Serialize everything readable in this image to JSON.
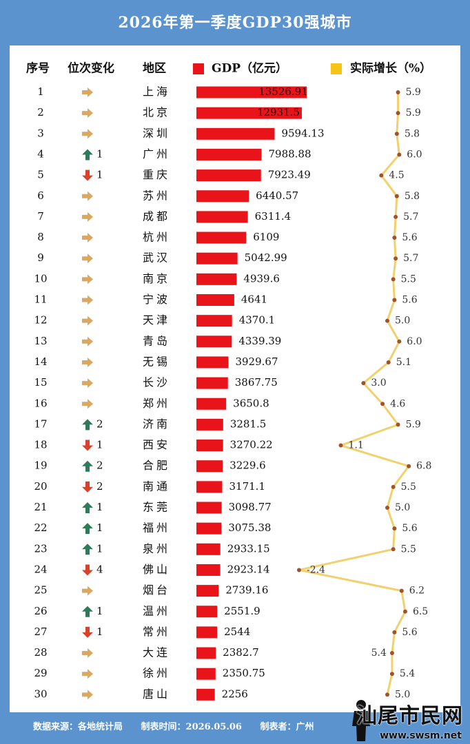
{
  "header": {
    "title": "2026年第一季度GDP30强城市"
  },
  "columns": {
    "rank": "序号",
    "change": "位次变化",
    "region": "地区",
    "gdp": "GDP（亿元）",
    "growth": "实际增长（%）"
  },
  "colors": {
    "background": "#5b93cf",
    "bar": "#e8141a",
    "line": "#f2d06b",
    "dot": "#a0522d",
    "up": "#2f7a5a",
    "down": "#d9412a",
    "flat": "#dba862",
    "legend_gdp": "#e8141a",
    "legend_growth": "#f6c417"
  },
  "chart_data": {
    "type": "table",
    "rows": [
      {
        "rank": "1",
        "dir": "flat",
        "delta": "",
        "city": "上海",
        "gdp": 13526.91,
        "gdp_label": "13526.91",
        "growth": 5.9,
        "growth_label": "5.9"
      },
      {
        "rank": "2",
        "dir": "flat",
        "delta": "",
        "city": "北京",
        "gdp": 12931.5,
        "gdp_label": "12931.5",
        "growth": 5.9,
        "growth_label": "5.9"
      },
      {
        "rank": "3",
        "dir": "flat",
        "delta": "",
        "city": "深圳",
        "gdp": 9594.13,
        "gdp_label": "9594.13",
        "growth": 5.8,
        "growth_label": "5.8"
      },
      {
        "rank": "4",
        "dir": "up",
        "delta": "1",
        "city": "广州",
        "gdp": 7988.88,
        "gdp_label": "7988.88",
        "growth": 6.0,
        "growth_label": "6.0"
      },
      {
        "rank": "5",
        "dir": "down",
        "delta": "1",
        "city": "重庆",
        "gdp": 7923.49,
        "gdp_label": "7923.49",
        "growth": 4.5,
        "growth_label": "4.5"
      },
      {
        "rank": "6",
        "dir": "flat",
        "delta": "",
        "city": "苏州",
        "gdp": 6440.57,
        "gdp_label": "6440.57",
        "growth": 5.8,
        "growth_label": "5.8"
      },
      {
        "rank": "7",
        "dir": "flat",
        "delta": "",
        "city": "成都",
        "gdp": 6311.4,
        "gdp_label": "6311.4",
        "growth": 5.7,
        "growth_label": "5.7"
      },
      {
        "rank": "8",
        "dir": "flat",
        "delta": "",
        "city": "杭州",
        "gdp": 6109,
        "gdp_label": "6109",
        "growth": 5.6,
        "growth_label": "5.6"
      },
      {
        "rank": "9",
        "dir": "flat",
        "delta": "",
        "city": "武汉",
        "gdp": 5042.99,
        "gdp_label": "5042.99",
        "growth": 5.7,
        "growth_label": "5.7"
      },
      {
        "rank": "10",
        "dir": "flat",
        "delta": "",
        "city": "南京",
        "gdp": 4939.6,
        "gdp_label": "4939.6",
        "growth": 5.5,
        "growth_label": "5.5"
      },
      {
        "rank": "11",
        "dir": "flat",
        "delta": "",
        "city": "宁波",
        "gdp": 4641,
        "gdp_label": "4641",
        "growth": 5.6,
        "growth_label": "5.6"
      },
      {
        "rank": "12",
        "dir": "flat",
        "delta": "",
        "city": "天津",
        "gdp": 4370.1,
        "gdp_label": "4370.1",
        "growth": 5.0,
        "growth_label": "5.0"
      },
      {
        "rank": "13",
        "dir": "flat",
        "delta": "",
        "city": "青岛",
        "gdp": 4339.39,
        "gdp_label": "4339.39",
        "growth": 6.0,
        "growth_label": "6.0"
      },
      {
        "rank": "14",
        "dir": "flat",
        "delta": "",
        "city": "无锡",
        "gdp": 3929.67,
        "gdp_label": "3929.67",
        "growth": 5.1,
        "growth_label": "5.1"
      },
      {
        "rank": "15",
        "dir": "flat",
        "delta": "",
        "city": "长沙",
        "gdp": 3867.75,
        "gdp_label": "3867.75",
        "growth": 3.0,
        "growth_label": "3.0"
      },
      {
        "rank": "16",
        "dir": "flat",
        "delta": "",
        "city": "郑州",
        "gdp": 3650.8,
        "gdp_label": "3650.8",
        "growth": 4.6,
        "growth_label": "4.6"
      },
      {
        "rank": "17",
        "dir": "up",
        "delta": "2",
        "city": "济南",
        "gdp": 3281.5,
        "gdp_label": "3281.5",
        "growth": 5.9,
        "growth_label": "5.9"
      },
      {
        "rank": "18",
        "dir": "down",
        "delta": "1",
        "city": "西安",
        "gdp": 3270.22,
        "gdp_label": "3270.22",
        "growth": 1.1,
        "growth_label": "1.1"
      },
      {
        "rank": "19",
        "dir": "up",
        "delta": "2",
        "city": "合肥",
        "gdp": 3229.6,
        "gdp_label": "3229.6",
        "growth": 6.8,
        "growth_label": "6.8"
      },
      {
        "rank": "20",
        "dir": "down",
        "delta": "2",
        "city": "南通",
        "gdp": 3171.1,
        "gdp_label": "3171.1",
        "growth": 5.5,
        "growth_label": "5.5"
      },
      {
        "rank": "21",
        "dir": "up",
        "delta": "1",
        "city": "东莞",
        "gdp": 3098.77,
        "gdp_label": "3098.77",
        "growth": 5.0,
        "growth_label": "5.0"
      },
      {
        "rank": "22",
        "dir": "up",
        "delta": "1",
        "city": "福州",
        "gdp": 3075.38,
        "gdp_label": "3075.38",
        "growth": 5.6,
        "growth_label": "5.6"
      },
      {
        "rank": "23",
        "dir": "up",
        "delta": "1",
        "city": "泉州",
        "gdp": 2933.15,
        "gdp_label": "2933.15",
        "growth": 5.5,
        "growth_label": "5.5"
      },
      {
        "rank": "24",
        "dir": "down",
        "delta": "4",
        "city": "佛山",
        "gdp": 2923.14,
        "gdp_label": "2923.14",
        "growth": -2.4,
        "growth_label": "-2.4"
      },
      {
        "rank": "25",
        "dir": "flat",
        "delta": "",
        "city": "烟台",
        "gdp": 2739.16,
        "gdp_label": "2739.16",
        "growth": 6.2,
        "growth_label": "6.2"
      },
      {
        "rank": "26",
        "dir": "up",
        "delta": "1",
        "city": "温州",
        "gdp": 2551.9,
        "gdp_label": "2551.9",
        "growth": 6.5,
        "growth_label": "6.5"
      },
      {
        "rank": "27",
        "dir": "down",
        "delta": "1",
        "city": "常州",
        "gdp": 2544,
        "gdp_label": "2544",
        "growth": 5.6,
        "growth_label": "5.6"
      },
      {
        "rank": "28",
        "dir": "flat",
        "delta": "",
        "city": "大连",
        "gdp": 2382.7,
        "gdp_label": "2382.7",
        "growth": 5.4,
        "growth_label": "5.4"
      },
      {
        "rank": "29",
        "dir": "flat",
        "delta": "",
        "city": "徐州",
        "gdp": 2350.75,
        "gdp_label": "2350.75",
        "growth": 5.4,
        "growth_label": "5.4"
      },
      {
        "rank": "30",
        "dir": "flat",
        "delta": "",
        "city": "唐山",
        "gdp": 2256,
        "gdp_label": "2256",
        "growth": 5.0,
        "growth_label": "5.0"
      }
    ]
  },
  "footer": {
    "source": "数据来源：各地统计局",
    "date": "制表时间：2026.05.06",
    "author": "制表者：广州"
  },
  "watermark": {
    "text": "汕尾市民网",
    "url": "www.swsm.net"
  }
}
